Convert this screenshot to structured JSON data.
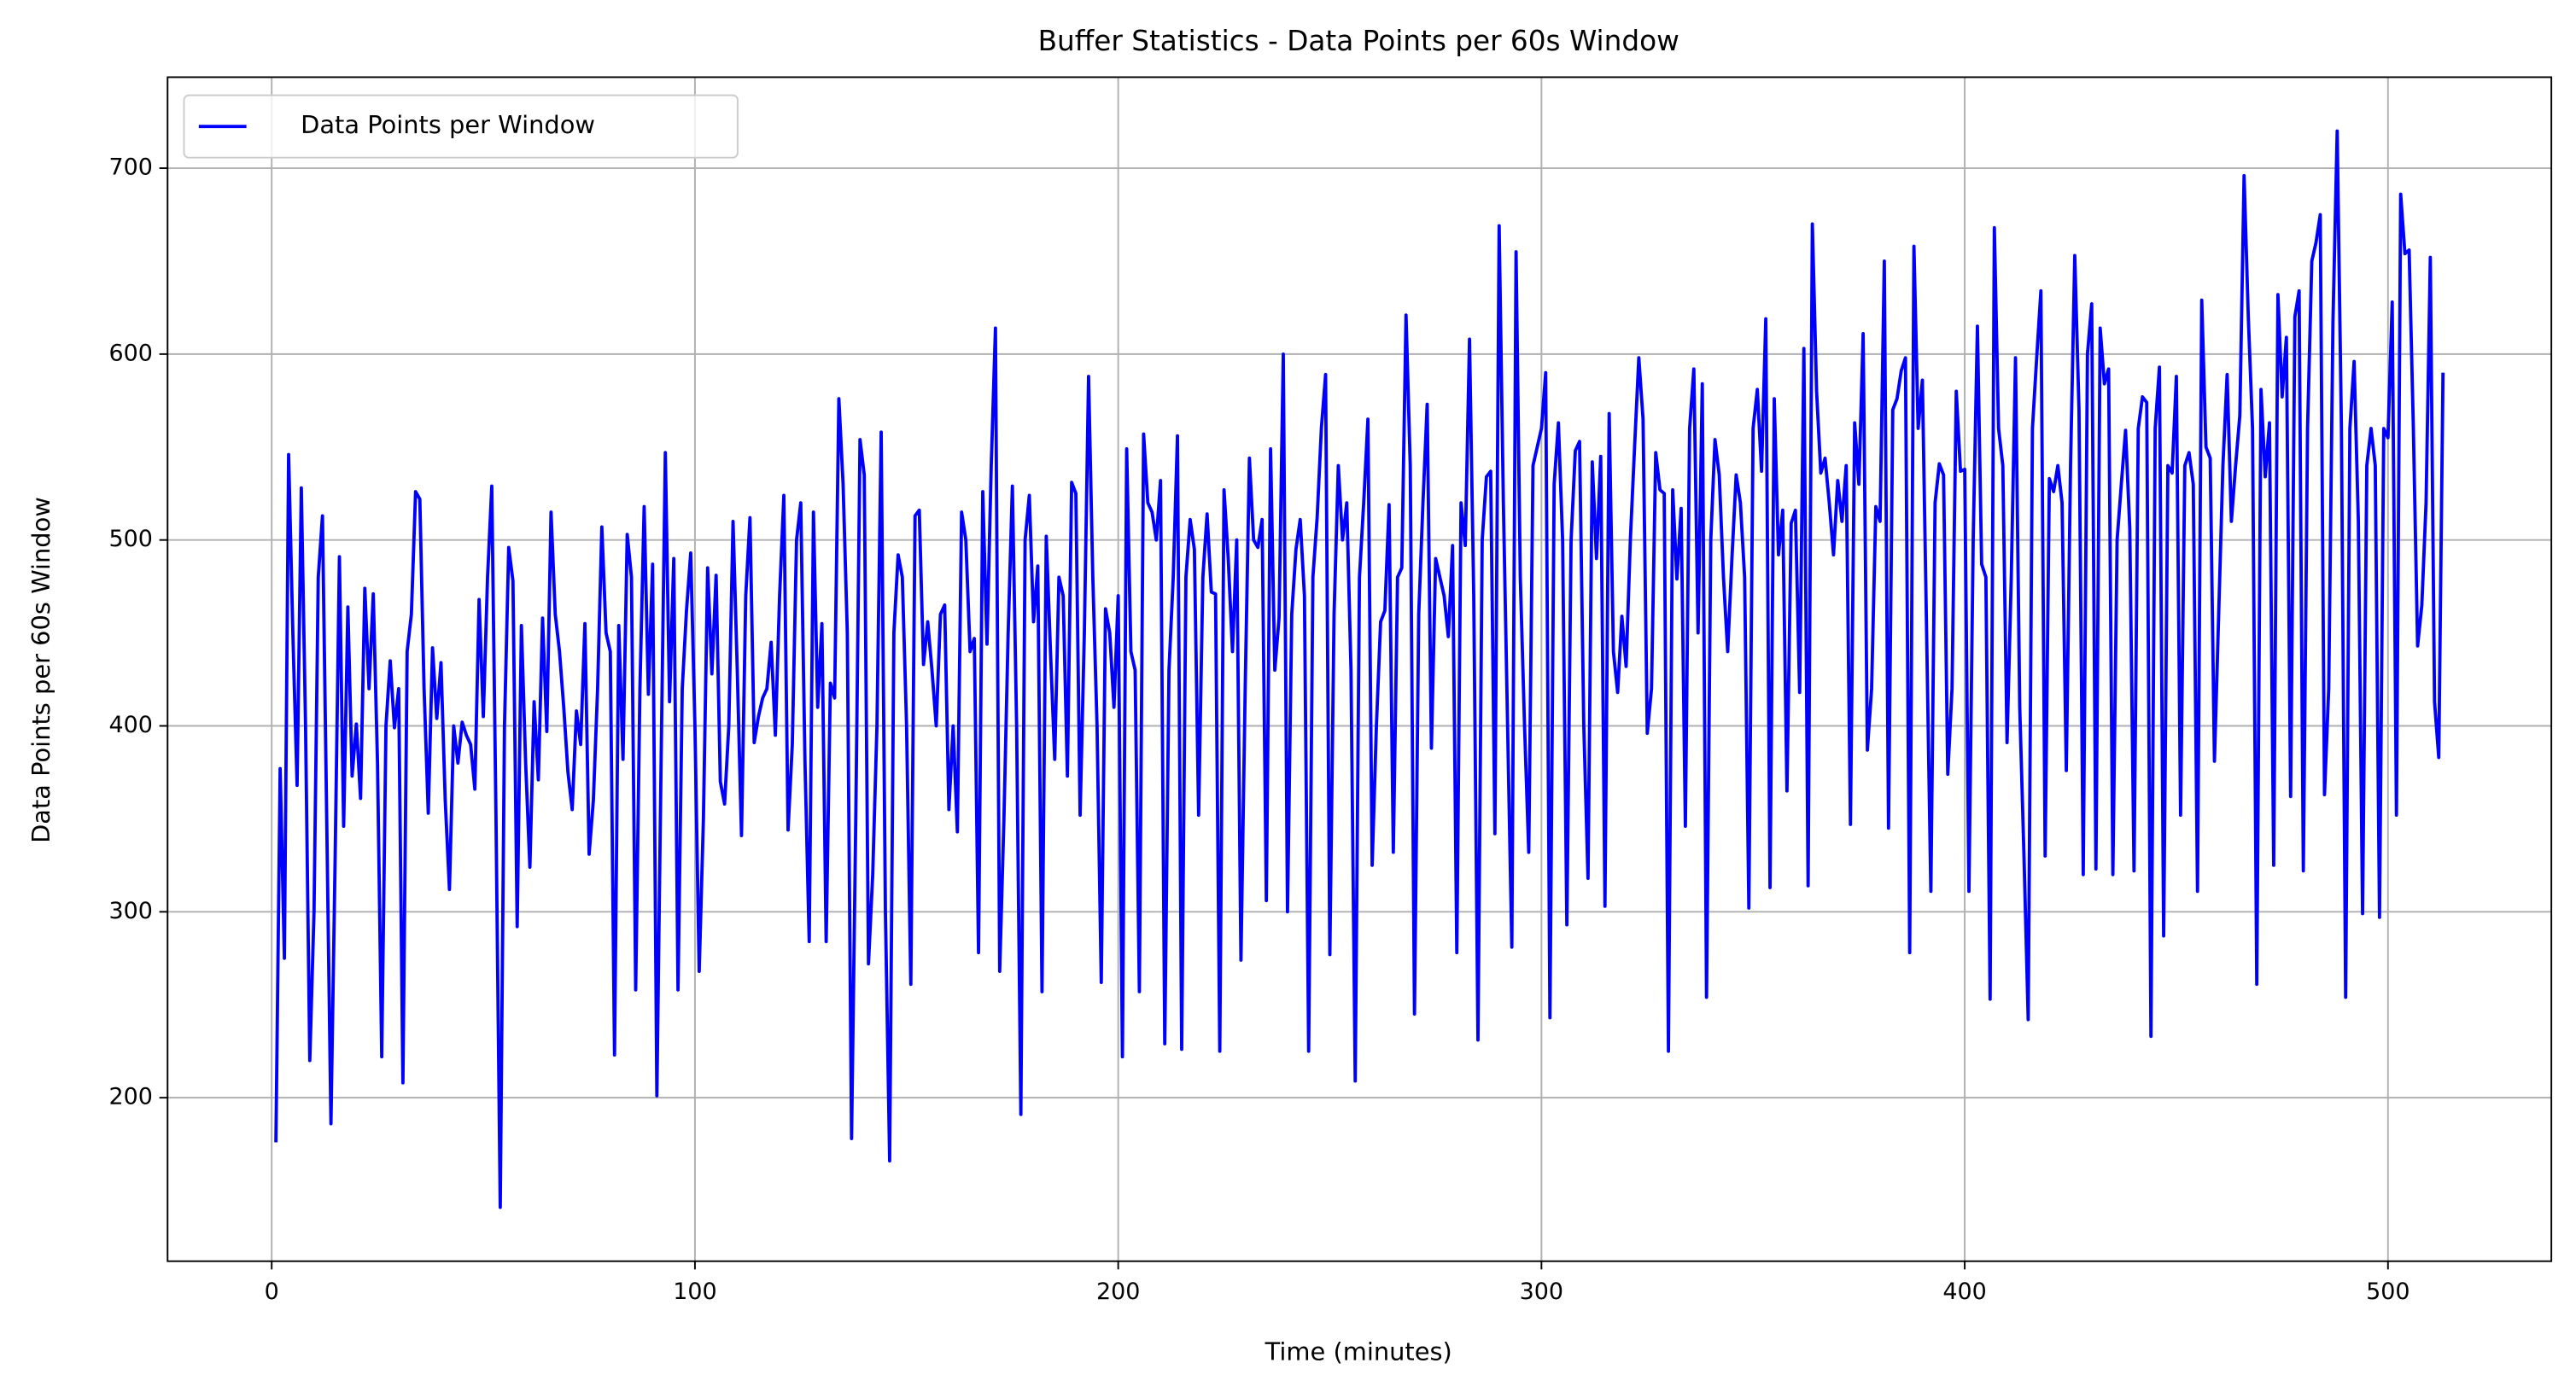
{
  "chart_data": {
    "type": "line",
    "title": "Buffer Statistics - Data Points per 60s Window",
    "xlabel": "Time (minutes)",
    "ylabel": "Data Points per 60s Window",
    "xlim": [
      -24.6,
      538.6
    ],
    "xticks": [
      0,
      100,
      200,
      300,
      400,
      500
    ],
    "ylim": [
      112.05,
      748.95
    ],
    "yticks": [
      200,
      300,
      400,
      500,
      600,
      700
    ],
    "grid": true,
    "legend": "upper left",
    "x": [
      1,
      2,
      3,
      4,
      5,
      6,
      7,
      8,
      9,
      10,
      11,
      12,
      13,
      14,
      15,
      16,
      17,
      18,
      19,
      20,
      21,
      22,
      23,
      24,
      25,
      26,
      27,
      28,
      29,
      30,
      31,
      32,
      33,
      34,
      35,
      36,
      37,
      38,
      39,
      40,
      41,
      42,
      43,
      44,
      45,
      46,
      47,
      48,
      49,
      50,
      51,
      52,
      53,
      54,
      55,
      56,
      57,
      58,
      59,
      60,
      61,
      62,
      63,
      64,
      65,
      66,
      67,
      68,
      69,
      70,
      71,
      72,
      73,
      74,
      75,
      76,
      77,
      78,
      79,
      80,
      81,
      82,
      83,
      84,
      85,
      86,
      87,
      88,
      89,
      90,
      91,
      92,
      93,
      94,
      95,
      96,
      97,
      98,
      99,
      100,
      101,
      102,
      103,
      104,
      105,
      106,
      107,
      108,
      109,
      110,
      111,
      112,
      113,
      114,
      115,
      116,
      117,
      118,
      119,
      120,
      121,
      122,
      123,
      124,
      125,
      126,
      127,
      128,
      129,
      130,
      131,
      132,
      133,
      134,
      135,
      136,
      137,
      138,
      139,
      140,
      141,
      142,
      143,
      144,
      145,
      146,
      147,
      148,
      149,
      150,
      151,
      152,
      153,
      154,
      155,
      156,
      157,
      158,
      159,
      160,
      161,
      162,
      163,
      164,
      165,
      166,
      167,
      168,
      169,
      170,
      171,
      172,
      173,
      174,
      175,
      176,
      177,
      178,
      179,
      180,
      181,
      182,
      183,
      184,
      185,
      186,
      187,
      188,
      189,
      190,
      191,
      192,
      193,
      194,
      195,
      196,
      197,
      198,
      199,
      200,
      201,
      202,
      203,
      204,
      205,
      206,
      207,
      208,
      209,
      210,
      211,
      212,
      213,
      214,
      215,
      216,
      217,
      218,
      219,
      220,
      221,
      222,
      223,
      224,
      225,
      226,
      227,
      228,
      229,
      230,
      231,
      232,
      233,
      234,
      235,
      236,
      237,
      238,
      239,
      240,
      241,
      242,
      243,
      244,
      245,
      246,
      247,
      248,
      249,
      250,
      251,
      252,
      253,
      254,
      255,
      256,
      257,
      258,
      259,
      260,
      261,
      262,
      263,
      264,
      265,
      266,
      267,
      268,
      269,
      270,
      271,
      272,
      273,
      274,
      275,
      276,
      277,
      278,
      279,
      280,
      281,
      282,
      283,
      284,
      285,
      286,
      287,
      288,
      289,
      290,
      291,
      292,
      293,
      294,
      295,
      296,
      297,
      298,
      299,
      300,
      301,
      302,
      303,
      304,
      305,
      306,
      307,
      308,
      309,
      310,
      311,
      312,
      313,
      314,
      315,
      316,
      317,
      318,
      319,
      320,
      321,
      322,
      323,
      324,
      325,
      326,
      327,
      328,
      329,
      330,
      331,
      332,
      333,
      334,
      335,
      336,
      337,
      338,
      339,
      340,
      341,
      342,
      343,
      344,
      345,
      346,
      347,
      348,
      349,
      350,
      351,
      352,
      353,
      354,
      355,
      356,
      357,
      358,
      359,
      360,
      361,
      362,
      363,
      364,
      365,
      366,
      367,
      368,
      369,
      370,
      371,
      372,
      373,
      374,
      375,
      376,
      377,
      378,
      379,
      380,
      381,
      382,
      383,
      384,
      385,
      386,
      387,
      388,
      389,
      390,
      391,
      392,
      393,
      394,
      395,
      396,
      397,
      398,
      399,
      400,
      401,
      402,
      403,
      404,
      405,
      406,
      407,
      408,
      409,
      410,
      411,
      412,
      413,
      414,
      415,
      416,
      417,
      418,
      419,
      420,
      421,
      422,
      423,
      424,
      425,
      426,
      427,
      428,
      429,
      430,
      431,
      432,
      433,
      434,
      435,
      436,
      437,
      438,
      439,
      440,
      441,
      442,
      443,
      444,
      445,
      446,
      447,
      448,
      449,
      450,
      451,
      452,
      453,
      454,
      455,
      456,
      457,
      458,
      459,
      460,
      461,
      462,
      463,
      464,
      465,
      466,
      467,
      468,
      469,
      470,
      471,
      472,
      473,
      474,
      475,
      476,
      477,
      478,
      479,
      480,
      481,
      482,
      483,
      484,
      485,
      486,
      487,
      488,
      489,
      490,
      491,
      492,
      493,
      494,
      495,
      496,
      497,
      498,
      499,
      500,
      501,
      502,
      503,
      504,
      505,
      506,
      507,
      508,
      509,
      510,
      511,
      512,
      513
    ],
    "series": [
      {
        "name": "Data Points per Window",
        "color": "#0000ff",
        "values": [
          176,
          377,
          275,
          546,
          450,
          368,
          528,
          400,
          220,
          300,
          480,
          513,
          350,
          186,
          330,
          491,
          346,
          464,
          373,
          401,
          361,
          474,
          420,
          471,
          380,
          222,
          400,
          435,
          399,
          420,
          208,
          440,
          460,
          526,
          522,
          420,
          353,
          442,
          404,
          434,
          360,
          312,
          400,
          380,
          402,
          395,
          390,
          366,
          468,
          405,
          480,
          529,
          350,
          141,
          400,
          496,
          478,
          292,
          454,
          380,
          324,
          413,
          371,
          458,
          397,
          515,
          460,
          440,
          410,
          375,
          355,
          408,
          390,
          455,
          331,
          360,
          420,
          507,
          450,
          440,
          223,
          454,
          382,
          503,
          480,
          258,
          420,
          518,
          417,
          487,
          201,
          380,
          547,
          413,
          490,
          258,
          420,
          462,
          493,
          400,
          268,
          350,
          485,
          428,
          481,
          370,
          358,
          400,
          510,
          430,
          341,
          470,
          512,
          391,
          405,
          415,
          420,
          445,
          395,
          470,
          524,
          344,
          390,
          500,
          520,
          380,
          284,
          515,
          410,
          455,
          284,
          423,
          415,
          576,
          530,
          450,
          178,
          350,
          554,
          535,
          272,
          320,
          400,
          558,
          300,
          166,
          450,
          492,
          480,
          400,
          261,
          513,
          516,
          433,
          456,
          430,
          400,
          460,
          465,
          355,
          400,
          343,
          515,
          500,
          440,
          447,
          278,
          526,
          444,
          540,
          614,
          268,
          350,
          450,
          529,
          400,
          191,
          500,
          524,
          456,
          486,
          257,
          502,
          440,
          382,
          480,
          470,
          373,
          531,
          525,
          352,
          450,
          588,
          480,
          400,
          262,
          463,
          450,
          410,
          470,
          222,
          549,
          440,
          430,
          257,
          557,
          520,
          515,
          500,
          532,
          229,
          430,
          480,
          556,
          226,
          480,
          511,
          495,
          352,
          480,
          514,
          472,
          471,
          225,
          527,
          490,
          440,
          500,
          274,
          420,
          544,
          500,
          496,
          511,
          306,
          549,
          430,
          458,
          600,
          300,
          460,
          495,
          511,
          470,
          225,
          480,
          512,
          560,
          589,
          277,
          460,
          540,
          500,
          520,
          430,
          209,
          480,
          520,
          565,
          325,
          400,
          456,
          462,
          519,
          332,
          480,
          485,
          621,
          540,
          245,
          460,
          520,
          573,
          388,
          490,
          480,
          470,
          448,
          497,
          278,
          520,
          497,
          608,
          470,
          231,
          500,
          534,
          537,
          342,
          669,
          520,
          400,
          281,
          655,
          480,
          400,
          332,
          540,
          550,
          560,
          590,
          243,
          530,
          563,
          500,
          293,
          500,
          548,
          553,
          400,
          318,
          542,
          490,
          545,
          303,
          568,
          440,
          418,
          459,
          432,
          500,
          550,
          598,
          565,
          396,
          420,
          547,
          527,
          525,
          225,
          527,
          479,
          517,
          346,
          560,
          592,
          450,
          584,
          254,
          500,
          554,
          535,
          480,
          440,
          490,
          535,
          520,
          480,
          302,
          560,
          581,
          537,
          619,
          313,
          576,
          492,
          516,
          365,
          509,
          516,
          418,
          603,
          314,
          670,
          580,
          536,
          544,
          520,
          492,
          532,
          510,
          540,
          347,
          563,
          530,
          611,
          387,
          420,
          518,
          510,
          650,
          345,
          570,
          576,
          591,
          598,
          278,
          658,
          560,
          586,
          450,
          311,
          520,
          541,
          535,
          374,
          420,
          580,
          537,
          538,
          311,
          500,
          615,
          487,
          480,
          253,
          668,
          560,
          540,
          391,
          480,
          598,
          410,
          330,
          242,
          560,
          598,
          634,
          330,
          533,
          526,
          540,
          520,
          376,
          540,
          653,
          570,
          320,
          600,
          627,
          323,
          614,
          584,
          592,
          320,
          500,
          530,
          559,
          506,
          322,
          560,
          577,
          574,
          233,
          560,
          593,
          287,
          540,
          536,
          588,
          352,
          540,
          547,
          530,
          311,
          629,
          550,
          544,
          381,
          460,
          540,
          589,
          510,
          540,
          567,
          696,
          620,
          560,
          261,
          581,
          534,
          563,
          325,
          632,
          577,
          609,
          362,
          620,
          634,
          322,
          560,
          650,
          660,
          675,
          363,
          420,
          617,
          720,
          560,
          254,
          560,
          596,
          510,
          299,
          540,
          560,
          540,
          297,
          560,
          555,
          628,
          352,
          686,
          654,
          656,
          560,
          443,
          465,
          520,
          652,
          413,
          383,
          590
        ]
      }
    ]
  }
}
